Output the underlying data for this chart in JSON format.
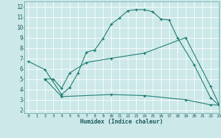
{
  "xlabel": "Humidex (Indice chaleur)",
  "xlim": [
    -0.5,
    23
  ],
  "ylim": [
    1.7,
    12.5
  ],
  "xticks": [
    0,
    1,
    2,
    3,
    4,
    5,
    6,
    7,
    8,
    9,
    10,
    11,
    12,
    13,
    14,
    15,
    16,
    17,
    18,
    19,
    20,
    21,
    22,
    23
  ],
  "yticks": [
    2,
    3,
    4,
    5,
    6,
    7,
    8,
    9,
    10,
    11,
    12
  ],
  "bg_color": "#cce8e8",
  "line_color": "#1a7a6e",
  "grid_color": "#ffffff",
  "lines": [
    {
      "x": [
        0,
        2,
        4,
        5,
        6,
        7,
        8,
        9,
        10,
        11,
        12,
        13,
        14,
        15,
        16,
        17,
        18,
        20,
        22,
        23
      ],
      "y": [
        6.7,
        5.9,
        3.5,
        4.2,
        5.6,
        7.6,
        7.8,
        8.9,
        10.3,
        10.9,
        11.6,
        11.7,
        11.7,
        11.5,
        10.8,
        10.7,
        9.0,
        6.4,
        3.2,
        2.5
      ]
    },
    {
      "x": [
        2,
        3,
        4,
        5,
        7,
        10,
        14,
        19,
        22,
        23
      ],
      "y": [
        5.0,
        5.0,
        4.1,
        5.6,
        6.6,
        7.0,
        7.5,
        9.0,
        4.3,
        2.6
      ]
    },
    {
      "x": [
        2,
        4,
        10,
        14,
        19,
        22,
        23
      ],
      "y": [
        5.0,
        3.3,
        3.5,
        3.4,
        3.0,
        2.5,
        2.5
      ]
    }
  ]
}
